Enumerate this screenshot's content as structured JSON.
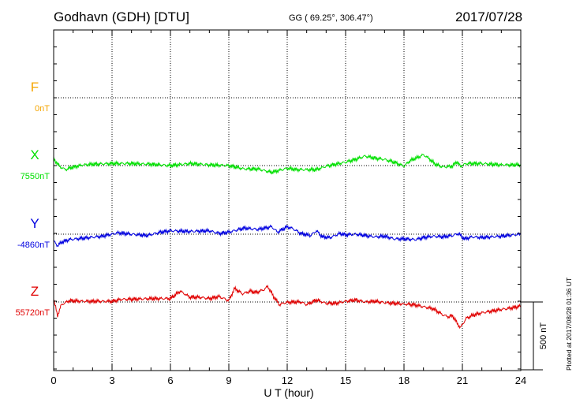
{
  "header": {
    "station": "Godhavn (GDH)  [DTU]",
    "coords": "GG ( 69.25°, 306.47°)",
    "date": "2017/07/28"
  },
  "footer": {
    "plotted": "Plotted at 2017/08/28 01:36 UT"
  },
  "scale": {
    "label": "500 nT",
    "nT": 500
  },
  "colors": {
    "F": "#f5a500",
    "X": "#00e000",
    "Y": "#0000e0",
    "Z": "#e00000"
  },
  "chart_data": {
    "type": "line",
    "xlabel": "U T (hour)",
    "xlim": [
      0,
      24
    ],
    "xticks": [
      "0",
      "3",
      "6",
      "9",
      "12",
      "15",
      "18",
      "21",
      "24"
    ],
    "unit": "nT",
    "series": [
      {
        "name": "F",
        "baseline_label": "0nT",
        "baseline": 0,
        "x": [],
        "values": []
      },
      {
        "name": "X",
        "baseline_label": "7550nT",
        "baseline": 7550,
        "x": [
          0,
          0.3,
          0.6,
          0.9,
          1.5,
          2,
          3,
          4,
          5,
          6,
          7,
          8,
          9,
          9.8,
          10.5,
          11.2,
          11.6,
          12,
          12.5,
          13,
          13.5,
          14,
          14.5,
          15,
          15.5,
          16,
          16.5,
          17,
          17.5,
          18,
          18.3,
          18.7,
          19,
          19.3,
          19.6,
          20,
          20.5,
          20.7,
          20.9,
          21.2,
          22,
          23,
          24
        ],
        "values": [
          7600,
          7545,
          7520,
          7535,
          7555,
          7560,
          7565,
          7565,
          7560,
          7550,
          7565,
          7555,
          7550,
          7525,
          7525,
          7500,
          7515,
          7530,
          7520,
          7520,
          7520,
          7545,
          7560,
          7575,
          7595,
          7620,
          7605,
          7595,
          7575,
          7545,
          7585,
          7610,
          7630,
          7600,
          7560,
          7540,
          7545,
          7580,
          7545,
          7565,
          7565,
          7555,
          7555
        ]
      },
      {
        "name": "Y",
        "baseline_label": "-4860nT",
        "baseline": -4860,
        "x": [
          0,
          0.2,
          0.4,
          0.8,
          1.5,
          2.5,
          3.3,
          4,
          4.8,
          5.5,
          6,
          7,
          8,
          8.5,
          9,
          9.8,
          10.5,
          11.2,
          11.5,
          12,
          12.3,
          12.7,
          13.2,
          13.5,
          13.8,
          14.2,
          14.7,
          15,
          15.5,
          16,
          16.5,
          17,
          17.5,
          18,
          18.6,
          19,
          19.5,
          20,
          20.5,
          20.8,
          21.1,
          21.5,
          22,
          23,
          24
        ],
        "values": [
          -4910,
          -4945,
          -4920,
          -4900,
          -4890,
          -4875,
          -4850,
          -4860,
          -4870,
          -4845,
          -4835,
          -4840,
          -4835,
          -4855,
          -4845,
          -4815,
          -4825,
          -4805,
          -4845,
          -4805,
          -4820,
          -4855,
          -4870,
          -4835,
          -4880,
          -4885,
          -4855,
          -4865,
          -4860,
          -4870,
          -4880,
          -4875,
          -4895,
          -4895,
          -4900,
          -4885,
          -4875,
          -4880,
          -4870,
          -4855,
          -4895,
          -4880,
          -4885,
          -4875,
          -4860
        ]
      },
      {
        "name": "Z",
        "baseline_label": "55720nT",
        "baseline": 55720,
        "x": [
          0,
          0.1,
          0.2,
          0.4,
          0.8,
          1.5,
          3,
          3.5,
          4,
          5,
          6,
          6.5,
          7,
          7.5,
          8,
          8.5,
          9,
          9.3,
          9.7,
          10.1,
          10.4,
          10.8,
          11,
          11.3,
          11.6,
          11.9,
          12.3,
          12.7,
          13,
          13.5,
          14,
          14.5,
          15,
          15.5,
          16,
          16.5,
          17,
          17.5,
          18,
          18.5,
          19,
          19.5,
          20,
          20.3,
          20.5,
          20.7,
          20.9,
          21.2,
          21.5,
          22,
          23,
          23.5,
          24
        ],
        "values": [
          55740,
          55680,
          55620,
          55700,
          55730,
          55725,
          55725,
          55740,
          55740,
          55745,
          55745,
          55800,
          55755,
          55755,
          55745,
          55760,
          55730,
          55820,
          55780,
          55800,
          55790,
          55810,
          55835,
          55760,
          55700,
          55715,
          55720,
          55720,
          55700,
          55735,
          55710,
          55710,
          55725,
          55735,
          55720,
          55725,
          55715,
          55710,
          55705,
          55700,
          55685,
          55670,
          55625,
          55610,
          55620,
          55570,
          55530,
          55600,
          55620,
          55640,
          55665,
          55675,
          55690
        ]
      }
    ]
  }
}
